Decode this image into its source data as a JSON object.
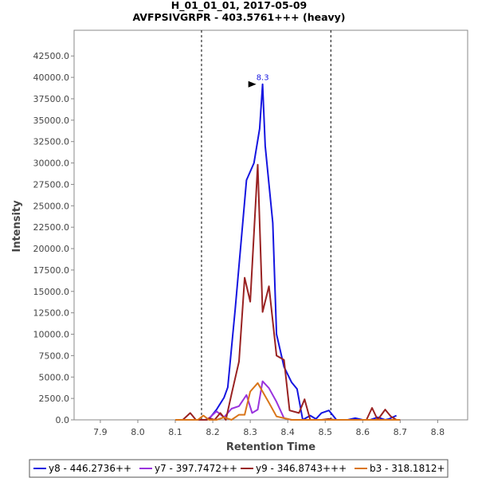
{
  "chart_data": {
    "type": "line",
    "title": "H_01_01_01, 2017-05-09",
    "subtitle": "AVFPSIVGRPR - 403.5761+++ (heavy)",
    "xlabel": "Retention Time",
    "ylabel": "Intensity",
    "xlim": [
      7.83,
      8.88
    ],
    "ylim": [
      0,
      45500
    ],
    "x_ticks": [
      "7.9",
      "8.0",
      "8.1",
      "8.2",
      "8.3",
      "8.4",
      "8.5",
      "8.6",
      "8.7",
      "8.8"
    ],
    "x_tick_values": [
      7.9,
      8.0,
      8.1,
      8.2,
      8.3,
      8.4,
      8.5,
      8.6,
      8.7,
      8.8
    ],
    "y_ticks": [
      "0.0",
      "2500.0",
      "5000.0",
      "7500.0",
      "10000.0",
      "12500.0",
      "15000.0",
      "17500.0",
      "20000.0",
      "22500.0",
      "25000.0",
      "27500.0",
      "30000.0",
      "32500.0",
      "35000.0",
      "37500.0",
      "40000.0",
      "42500.0"
    ],
    "y_tick_values": [
      0,
      2500,
      5000,
      7500,
      10000,
      12500,
      15000,
      17500,
      20000,
      22500,
      25000,
      27500,
      30000,
      32500,
      35000,
      37500,
      40000,
      42500
    ],
    "vlines": [
      8.17,
      8.515
    ],
    "peak_annotation": {
      "label": "8.3",
      "x": 8.333,
      "y": 39200
    },
    "grid": false,
    "legend_position": "bottom",
    "series": [
      {
        "name": "y8 - 446.2736++",
        "color": "#1515e0",
        "x": [
          8.1,
          8.12,
          8.14,
          8.16,
          8.18,
          8.19,
          8.21,
          8.23,
          8.24,
          8.26,
          8.28,
          8.29,
          8.31,
          8.325,
          8.333,
          8.34,
          8.36,
          8.37,
          8.39,
          8.41,
          8.425,
          8.44,
          8.46,
          8.475,
          8.49,
          8.51,
          8.53,
          8.55,
          8.56,
          8.58,
          8.6,
          8.62,
          8.64,
          8.66,
          8.67,
          8.69
        ],
        "y": [
          0,
          0,
          0,
          0,
          0,
          100,
          1200,
          2600,
          3800,
          13000,
          23000,
          28000,
          30000,
          34000,
          39200,
          32000,
          23000,
          10000,
          6200,
          4400,
          3600,
          0,
          500,
          100,
          800,
          1100,
          0,
          0,
          0,
          200,
          0,
          0,
          300,
          0,
          100,
          500
        ]
      },
      {
        "name": "y7 - 397.7472++",
        "color": "#9933dd",
        "x": [
          8.1,
          8.12,
          8.14,
          8.16,
          8.18,
          8.19,
          8.21,
          8.23,
          8.25,
          8.27,
          8.29,
          8.305,
          8.32,
          8.333,
          8.35,
          8.37,
          8.39,
          8.41,
          8.43,
          8.46,
          8.49,
          8.52,
          8.55,
          8.58,
          8.61,
          8.64,
          8.67,
          8.7
        ],
        "y": [
          0,
          0,
          0,
          0,
          0,
          200,
          1000,
          300,
          1300,
          1600,
          2900,
          800,
          1200,
          4500,
          3700,
          2100,
          200,
          0,
          0,
          0,
          0,
          0,
          0,
          0,
          0,
          0,
          0,
          0
        ]
      },
      {
        "name": "y9 - 346.8743+++",
        "color": "#992222",
        "x": [
          8.1,
          8.12,
          8.14,
          8.155,
          8.17,
          8.185,
          8.19,
          8.205,
          8.22,
          8.235,
          8.25,
          8.27,
          8.285,
          8.3,
          8.32,
          8.333,
          8.35,
          8.37,
          8.39,
          8.405,
          8.43,
          8.445,
          8.46,
          8.475,
          8.49,
          8.51,
          8.525,
          8.54,
          8.56,
          8.58,
          8.61,
          8.625,
          8.64,
          8.66,
          8.675,
          8.69
        ],
        "y": [
          0,
          0,
          800,
          0,
          0,
          0,
          200,
          0,
          800,
          0,
          3000,
          6800,
          16600,
          13800,
          29800,
          12600,
          15600,
          7500,
          7000,
          1100,
          800,
          2400,
          0,
          0,
          0,
          100,
          0,
          0,
          0,
          0,
          0,
          1400,
          0,
          1200,
          400,
          0
        ]
      },
      {
        "name": "b3 - 318.1812+",
        "color": "#d97519",
        "x": [
          8.1,
          8.12,
          8.14,
          8.16,
          8.175,
          8.19,
          8.21,
          8.23,
          8.25,
          8.27,
          8.285,
          8.3,
          8.32,
          8.333,
          8.35,
          8.37,
          8.39,
          8.41,
          8.43,
          8.46,
          8.49,
          8.52,
          8.55,
          8.58,
          8.61,
          8.64,
          8.67,
          8.7
        ],
        "y": [
          0,
          0,
          0,
          0,
          500,
          0,
          0,
          300,
          0,
          600,
          600,
          3300,
          4300,
          3300,
          2000,
          400,
          200,
          0,
          0,
          0,
          0,
          0,
          0,
          0,
          0,
          0,
          0,
          0
        ]
      }
    ]
  }
}
